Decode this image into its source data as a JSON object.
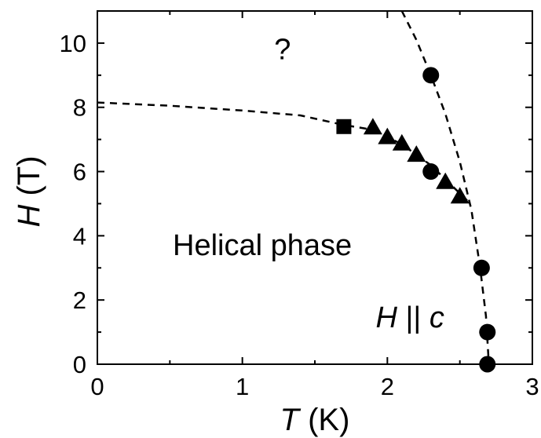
{
  "chart_data": {
    "type": "scatter",
    "title": "",
    "xlabel": {
      "symbol": "T",
      "unit": "(K)"
    },
    "ylabel": {
      "symbol": "H",
      "unit": "(T)"
    },
    "xlim": [
      0,
      3
    ],
    "ylim": [
      0,
      11
    ],
    "x_ticks": [
      "0",
      "1",
      "2",
      "3"
    ],
    "y_ticks": [
      "0",
      "2",
      "4",
      "6",
      "8",
      "10"
    ],
    "grid": false,
    "legend": "none",
    "series": [
      {
        "marker": "circle",
        "x": [
          2.3,
          2.3,
          2.65,
          2.69,
          2.69
        ],
        "y": [
          9.0,
          6.0,
          3.0,
          1.0,
          0.0
        ]
      },
      {
        "marker": "triangle",
        "x": [
          1.9,
          2.0,
          2.1,
          2.2,
          2.4,
          2.5
        ],
        "y": [
          7.35,
          7.05,
          6.85,
          6.5,
          5.65,
          5.2
        ]
      },
      {
        "marker": "square",
        "x": [
          1.7
        ],
        "y": [
          7.4
        ]
      }
    ],
    "boundaries": [
      {
        "style": "dashed",
        "x": [
          0.0,
          0.5,
          1.0,
          1.4,
          1.7,
          1.9,
          2.1,
          2.3,
          2.55
        ],
        "y": [
          8.15,
          8.05,
          7.9,
          7.75,
          7.45,
          7.3,
          6.85,
          6.2,
          5.1
        ]
      },
      {
        "style": "dashed",
        "x": [
          2.1,
          2.2,
          2.3,
          2.4,
          2.5,
          2.58,
          2.64,
          2.68,
          2.7
        ],
        "y": [
          11.0,
          10.1,
          9.0,
          7.8,
          6.3,
          4.8,
          3.0,
          1.5,
          0.0
        ]
      }
    ],
    "annotations": [
      {
        "text": "?",
        "x": 1.22,
        "y": 9.5
      },
      {
        "text": "Helical phase",
        "x": 0.52,
        "y": 3.4
      },
      {
        "text_italic": "H",
        "text": " || ",
        "text_italic2": "c",
        "x": 1.92,
        "y": 1.15
      }
    ]
  }
}
